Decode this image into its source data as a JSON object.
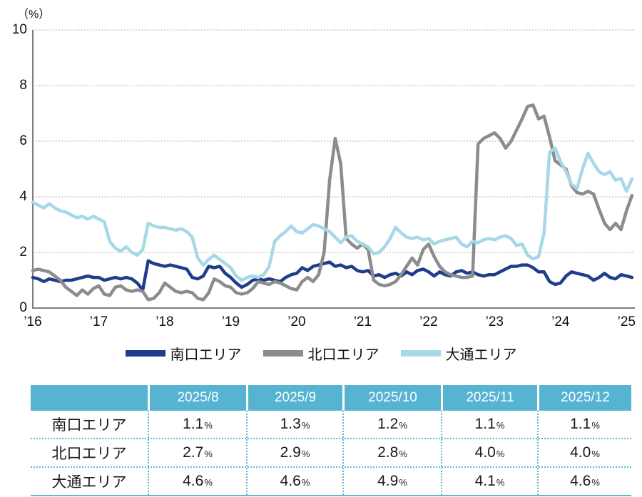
{
  "chart": {
    "unit_label": "（%）",
    "y_ticks": [
      0,
      2,
      4,
      6,
      8,
      10
    ],
    "x_ticks": [
      "’16",
      "’17",
      "’18",
      "’19",
      "’20",
      "’21",
      "’22",
      "’23",
      "’24",
      "’25"
    ],
    "axis_color": "#7F7F7F",
    "grid_color": "#B3B3B3"
  },
  "chart_data": {
    "type": "line",
    "title": "",
    "xlabel": "",
    "ylabel": "（%）",
    "ylim": [
      0,
      10
    ],
    "grid": "horizontal-dotted",
    "legend_position": "bottom",
    "x_tick_labels": [
      "’16",
      "’17",
      "’18",
      "’19",
      "’20",
      "’21",
      "’22",
      "’23",
      "’24",
      "’25"
    ],
    "interval": "monthly (estimated from plot)",
    "series": [
      {
        "name": "南口エリア",
        "color": "#1F3D8C",
        "values": [
          1.1,
          1.05,
          0.95,
          1.05,
          1.0,
          0.95,
          1.0,
          1.0,
          1.05,
          1.1,
          1.15,
          1.1,
          1.1,
          1.0,
          1.05,
          1.1,
          1.05,
          1.1,
          1.05,
          0.9,
          0.65,
          1.7,
          1.6,
          1.55,
          1.5,
          1.55,
          1.5,
          1.45,
          1.4,
          1.1,
          1.05,
          1.15,
          1.5,
          1.45,
          1.5,
          1.25,
          1.1,
          0.9,
          0.75,
          0.85,
          1.0,
          1.05,
          1.0,
          1.05,
          1.0,
          0.95,
          1.1,
          1.2,
          1.25,
          1.45,
          1.35,
          1.5,
          1.55,
          1.6,
          1.65,
          1.5,
          1.55,
          1.45,
          1.5,
          1.35,
          1.3,
          1.35,
          1.15,
          1.2,
          1.1,
          1.2,
          1.25,
          1.15,
          1.3,
          1.2,
          1.35,
          1.4,
          1.3,
          1.15,
          1.3,
          1.2,
          1.15,
          1.3,
          1.35,
          1.25,
          1.3,
          1.2,
          1.15,
          1.2,
          1.2,
          1.3,
          1.4,
          1.5,
          1.5,
          1.55,
          1.55,
          1.45,
          1.3,
          1.3,
          0.95,
          0.85,
          0.9,
          1.15,
          1.3,
          1.25,
          1.2,
          1.15,
          1.0,
          1.1,
          1.25,
          1.1,
          1.05,
          1.2,
          1.15,
          1.1
        ]
      },
      {
        "name": "北口エリア",
        "color": "#8C8C8C",
        "values": [
          1.35,
          1.4,
          1.35,
          1.3,
          1.15,
          1.0,
          0.75,
          0.6,
          0.45,
          0.65,
          0.5,
          0.7,
          0.8,
          0.5,
          0.45,
          0.75,
          0.8,
          0.65,
          0.6,
          0.65,
          0.6,
          0.3,
          0.35,
          0.55,
          0.9,
          0.75,
          0.6,
          0.55,
          0.6,
          0.55,
          0.35,
          0.3,
          0.55,
          1.05,
          0.95,
          0.8,
          0.75,
          0.55,
          0.5,
          0.55,
          0.7,
          0.95,
          0.9,
          0.85,
          0.95,
          0.9,
          0.8,
          0.7,
          0.65,
          0.95,
          1.1,
          0.95,
          1.2,
          2.0,
          4.6,
          6.1,
          5.2,
          2.5,
          2.3,
          2.15,
          2.3,
          2.1,
          1.0,
          0.85,
          0.8,
          0.85,
          0.95,
          1.2,
          1.5,
          1.8,
          1.55,
          2.1,
          2.3,
          1.85,
          1.5,
          1.3,
          1.2,
          1.15,
          1.1,
          1.1,
          1.15,
          5.9,
          6.1,
          6.2,
          6.3,
          6.1,
          5.75,
          6.0,
          6.4,
          6.8,
          7.25,
          7.3,
          6.8,
          6.9,
          6.15,
          5.3,
          5.15,
          5.0,
          4.4,
          4.15,
          4.1,
          4.2,
          4.1,
          3.55,
          3.05,
          2.82,
          3.05,
          2.82,
          3.5,
          4.05
        ]
      },
      {
        "name": "大通エリア",
        "color": "#A6D8E7",
        "values": [
          3.8,
          3.7,
          3.6,
          3.75,
          3.6,
          3.5,
          3.45,
          3.35,
          3.25,
          3.3,
          3.2,
          3.3,
          3.2,
          3.1,
          2.4,
          2.15,
          2.05,
          2.2,
          2.0,
          1.9,
          2.1,
          3.05,
          2.95,
          2.9,
          2.9,
          2.85,
          2.8,
          2.85,
          2.75,
          2.55,
          1.8,
          1.55,
          1.75,
          1.9,
          1.75,
          1.6,
          1.45,
          1.15,
          1.0,
          1.1,
          1.15,
          1.1,
          1.2,
          1.5,
          2.4,
          2.6,
          2.75,
          2.95,
          2.75,
          2.7,
          2.85,
          3.0,
          2.95,
          2.85,
          2.75,
          2.55,
          2.35,
          2.55,
          2.6,
          2.4,
          2.3,
          2.2,
          1.95,
          2.0,
          2.2,
          2.5,
          2.9,
          2.7,
          2.55,
          2.5,
          2.55,
          2.45,
          2.5,
          2.3,
          2.4,
          2.45,
          2.5,
          2.55,
          2.3,
          2.2,
          2.4,
          2.35,
          2.45,
          2.5,
          2.45,
          2.55,
          2.6,
          2.5,
          2.25,
          2.3,
          1.9,
          1.77,
          1.85,
          2.7,
          5.6,
          5.75,
          5.27,
          4.9,
          4.45,
          4.3,
          5.0,
          5.56,
          5.2,
          4.9,
          4.8,
          4.9,
          4.6,
          4.66,
          4.2,
          4.65
        ]
      }
    ]
  },
  "table": {
    "header_bg": "#57B3D2",
    "header_text_color": "#FFFFFF",
    "border_color": "#5CB9D6",
    "value_suffix": "%",
    "columns": [
      "",
      "2025/8",
      "2025/9",
      "2025/10",
      "2025/11",
      "2025/12"
    ],
    "rows": [
      {
        "label": "南口エリア",
        "values": [
          "1.1",
          "1.3",
          "1.2",
          "1.1",
          "1.1"
        ]
      },
      {
        "label": "北口エリア",
        "values": [
          "2.7",
          "2.9",
          "2.8",
          "4.0",
          "4.0"
        ]
      },
      {
        "label": "大通エリア",
        "values": [
          "4.6",
          "4.6",
          "4.9",
          "4.1",
          "4.6"
        ]
      }
    ]
  }
}
